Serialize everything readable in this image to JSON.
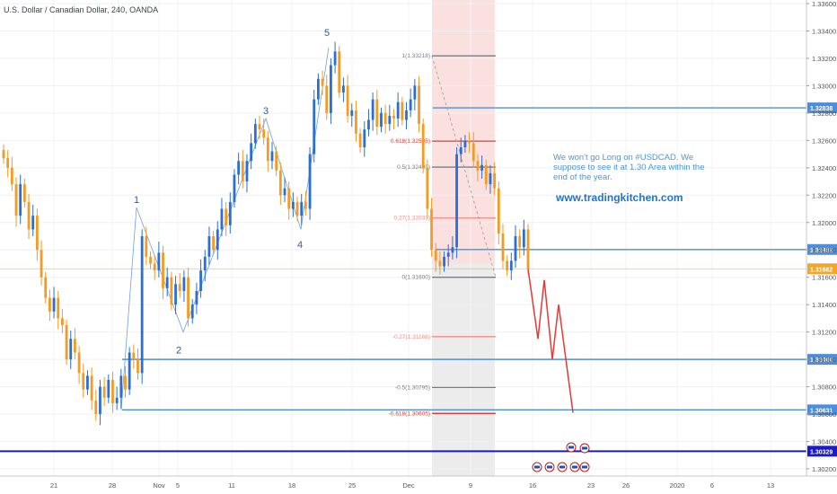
{
  "chart_title": "U.S. Dollar / Canadian Dollar, 240, OANDA",
  "chart_data": {
    "type": "candlestick",
    "ylim": [
      1.301,
      1.3366
    ],
    "y_ticks": [
      "1.33600",
      "1.33400",
      "1.33200",
      "1.33000",
      "1.32800",
      "1.32600",
      "1.32400",
      "1.32200",
      "1.32000",
      "1.31800",
      "1.31600",
      "1.31400",
      "1.31200",
      "1.31000",
      "1.30800",
      "1.30600",
      "1.30400",
      "1.30200"
    ],
    "x_ticks": [
      "21",
      "28",
      "Nov",
      "5",
      "11",
      "18",
      "25",
      "Dec",
      "9",
      "16",
      "23",
      "26",
      "2020",
      "6",
      "13"
    ],
    "close_path": [
      1.3247,
      1.324,
      1.3228,
      1.3205,
      1.3228,
      1.3215,
      1.3195,
      1.3205,
      1.318,
      1.316,
      1.3145,
      1.3135,
      1.3145,
      1.313,
      1.3125,
      1.31,
      1.3115,
      1.3105,
      1.309,
      1.3078,
      1.3088,
      1.307,
      1.306,
      1.308,
      1.3072,
      1.3085,
      1.3068,
      1.3072,
      1.3088,
      1.3078,
      1.3105,
      1.31,
      1.309,
      1.319,
      1.3175,
      1.317,
      1.3165,
      1.3178,
      1.3152,
      1.316,
      1.314,
      1.3155,
      1.315,
      1.316,
      1.313,
      1.314,
      1.315,
      1.3165,
      1.3175,
      1.319,
      1.318,
      1.3195,
      1.321,
      1.3198,
      1.3215,
      1.3235,
      1.3245,
      1.323,
      1.3245,
      1.3258,
      1.3272,
      1.3268,
      1.3262,
      1.3245,
      1.3252,
      1.3238,
      1.322,
      1.3225,
      1.321,
      1.3215,
      1.3205,
      1.3215,
      1.321,
      1.325,
      1.329,
      1.3305,
      1.33,
      1.328,
      1.3315,
      1.3325,
      1.3295,
      1.33,
      1.3278,
      1.3282,
      1.3265,
      1.3255,
      1.3268,
      1.3275,
      1.329,
      1.327,
      1.328,
      1.3272,
      1.3278,
      1.3276,
      1.3288,
      1.3275,
      1.3282,
      1.329,
      1.33,
      1.3272,
      1.324,
      1.321,
      1.318,
      1.3172,
      1.3168,
      1.3175,
      1.3178,
      1.3182,
      1.325,
      1.3255,
      1.326,
      1.3258,
      1.3245,
      1.3238,
      1.3242,
      1.3228,
      1.3236,
      1.3225,
      1.3192,
      1.3172,
      1.3165,
      1.3172,
      1.319,
      1.3182,
      1.3195,
      1.3166
    ],
    "projection": [
      1.3166,
      1.3115,
      1.3158,
      1.31,
      1.314,
      1.3061
    ],
    "wave_labels": [
      {
        "label": "1",
        "price": 1.3211
      },
      {
        "label": "2",
        "price": 1.3113
      },
      {
        "label": "3",
        "price": 1.3276
      },
      {
        "label": "4",
        "price": 1.319
      },
      {
        "label": "5",
        "price": 1.3333
      }
    ],
    "fibonacci": [
      {
        "label": "1(1.33218)",
        "price": 1.33218,
        "color": "#787b86"
      },
      {
        "label": "0.618(1.32595)",
        "price": 1.32595,
        "color": "#e53935"
      },
      {
        "label": "0.5(1.32405)",
        "price": 1.32405,
        "color": "#787b86"
      },
      {
        "label": "0.27(1.32033)",
        "price": 1.32033,
        "color": "#f28b82"
      },
      {
        "label": "0(1.31600)",
        "price": 1.316,
        "color": "#787b86"
      },
      {
        "label": "-0.27(1.31166)",
        "price": 1.31166,
        "color": "#f28b82"
      },
      {
        "label": "-0.5(1.30795)",
        "price": 1.30795,
        "color": "#787b86"
      },
      {
        "label": "-0.618(1.30605)",
        "price": 1.30605,
        "color": "#e53935"
      }
    ],
    "levels": [
      {
        "label": "1.32838",
        "price": 1.32838,
        "color": "#4a8fdf"
      },
      {
        "label": "1.31803",
        "price": 1.31803,
        "color": "#4a8fdf"
      },
      {
        "label": "1.31000",
        "price": 1.31,
        "color": "#4a8fdf"
      },
      {
        "label": "1.30631",
        "price": 1.30631,
        "color": "#4a8fdf"
      },
      {
        "label": "1.30329",
        "price": 1.30329,
        "color": "#1a1acc"
      }
    ],
    "current": {
      "label": "1.31662",
      "price": 1.31662,
      "color": "#f5a623"
    }
  },
  "annotation": {
    "line1": "We won't go Long on #USDCAD. We",
    "line2": "suppose to see it at 1.30 Area within the",
    "line3": "end of the year.",
    "url": "www.tradingkitchen.com"
  },
  "colors": {
    "up": "#2a6fd6",
    "down": "#f59a23",
    "zone_top": "#f7c7c7",
    "zone_bottom": "#dcdcdc",
    "projection": "#e53935"
  }
}
